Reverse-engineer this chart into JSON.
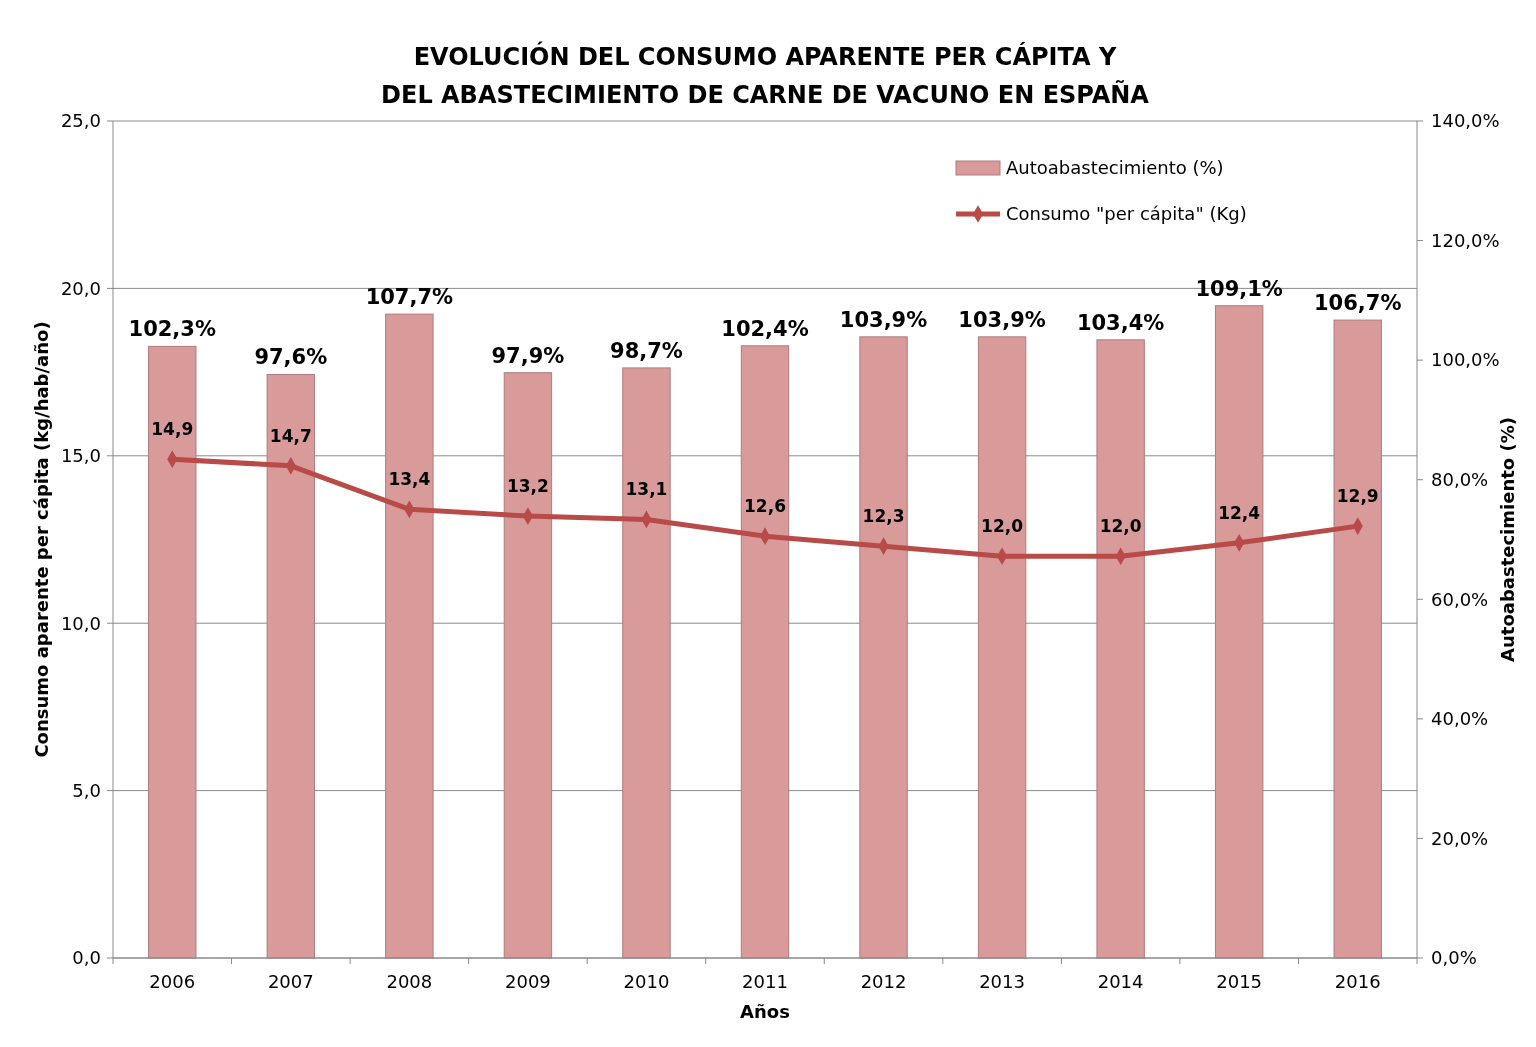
{
  "chart_data": {
    "type": "bar",
    "title": "EVOLUCIÓN DEL CONSUMO APARENTE PER CÁPITA Y\nDEL ABASTECIMIENTO DE CARNE DE VACUNO EN ESPAÑA",
    "xlabel": "Años",
    "ylabel": "Consumo aparente per cápita (kg/hab/año)",
    "y2label": "Autoabastecimiento (%)",
    "categories": [
      "2006",
      "2007",
      "2008",
      "2009",
      "2010",
      "2011",
      "2012",
      "2013",
      "2014",
      "2015",
      "2016"
    ],
    "series": [
      {
        "name": "Autoabastecimiento (%)",
        "axis": "y2",
        "color": "#d99a9a",
        "values": [
          102.3,
          97.6,
          107.7,
          97.9,
          98.7,
          102.4,
          103.9,
          103.9,
          103.4,
          109.1,
          106.7
        ],
        "value_labels": [
          "102,3%",
          "97,6%",
          "107,7%",
          "97,9%",
          "98,7%",
          "102,4%",
          "103,9%",
          "103,9%",
          "103,4%",
          "109,1%",
          "106,7%"
        ]
      },
      {
        "name": "Consumo \"per cápita\" (Kg)",
        "type": "line",
        "color": "#b84a48",
        "values": [
          14.9,
          14.7,
          13.4,
          13.2,
          13.1,
          12.6,
          12.3,
          12.0,
          12.0,
          12.4,
          12.9
        ],
        "value_labels": [
          "14,9",
          "14,7",
          "13,4",
          "13,2",
          "13,1",
          "12,6",
          "12,3",
          "12,0",
          "12,0",
          "12,4",
          "12,9"
        ]
      }
    ],
    "ylim": [
      0,
      25
    ],
    "yticks": [
      {
        "value": 0,
        "label": "0,0"
      },
      {
        "value": 5,
        "label": "5,0"
      },
      {
        "value": 10,
        "label": "10,0"
      },
      {
        "value": 15,
        "label": "15,0"
      },
      {
        "value": 20,
        "label": "20,0"
      },
      {
        "value": 25,
        "label": "25,0"
      }
    ],
    "y2lim": [
      0,
      140
    ],
    "y2ticks": [
      {
        "value": 0,
        "label": "0,0%"
      },
      {
        "value": 20,
        "label": "20,0%"
      },
      {
        "value": 40,
        "label": "40,0%"
      },
      {
        "value": 60,
        "label": "60,0%"
      },
      {
        "value": 80,
        "label": "80,0%"
      },
      {
        "value": 100,
        "label": "100,0%"
      },
      {
        "value": 120,
        "label": "120,0%"
      },
      {
        "value": 140,
        "label": "140,0%"
      }
    ],
    "grid": "y",
    "legend": "top right",
    "marker": "diamond"
  }
}
